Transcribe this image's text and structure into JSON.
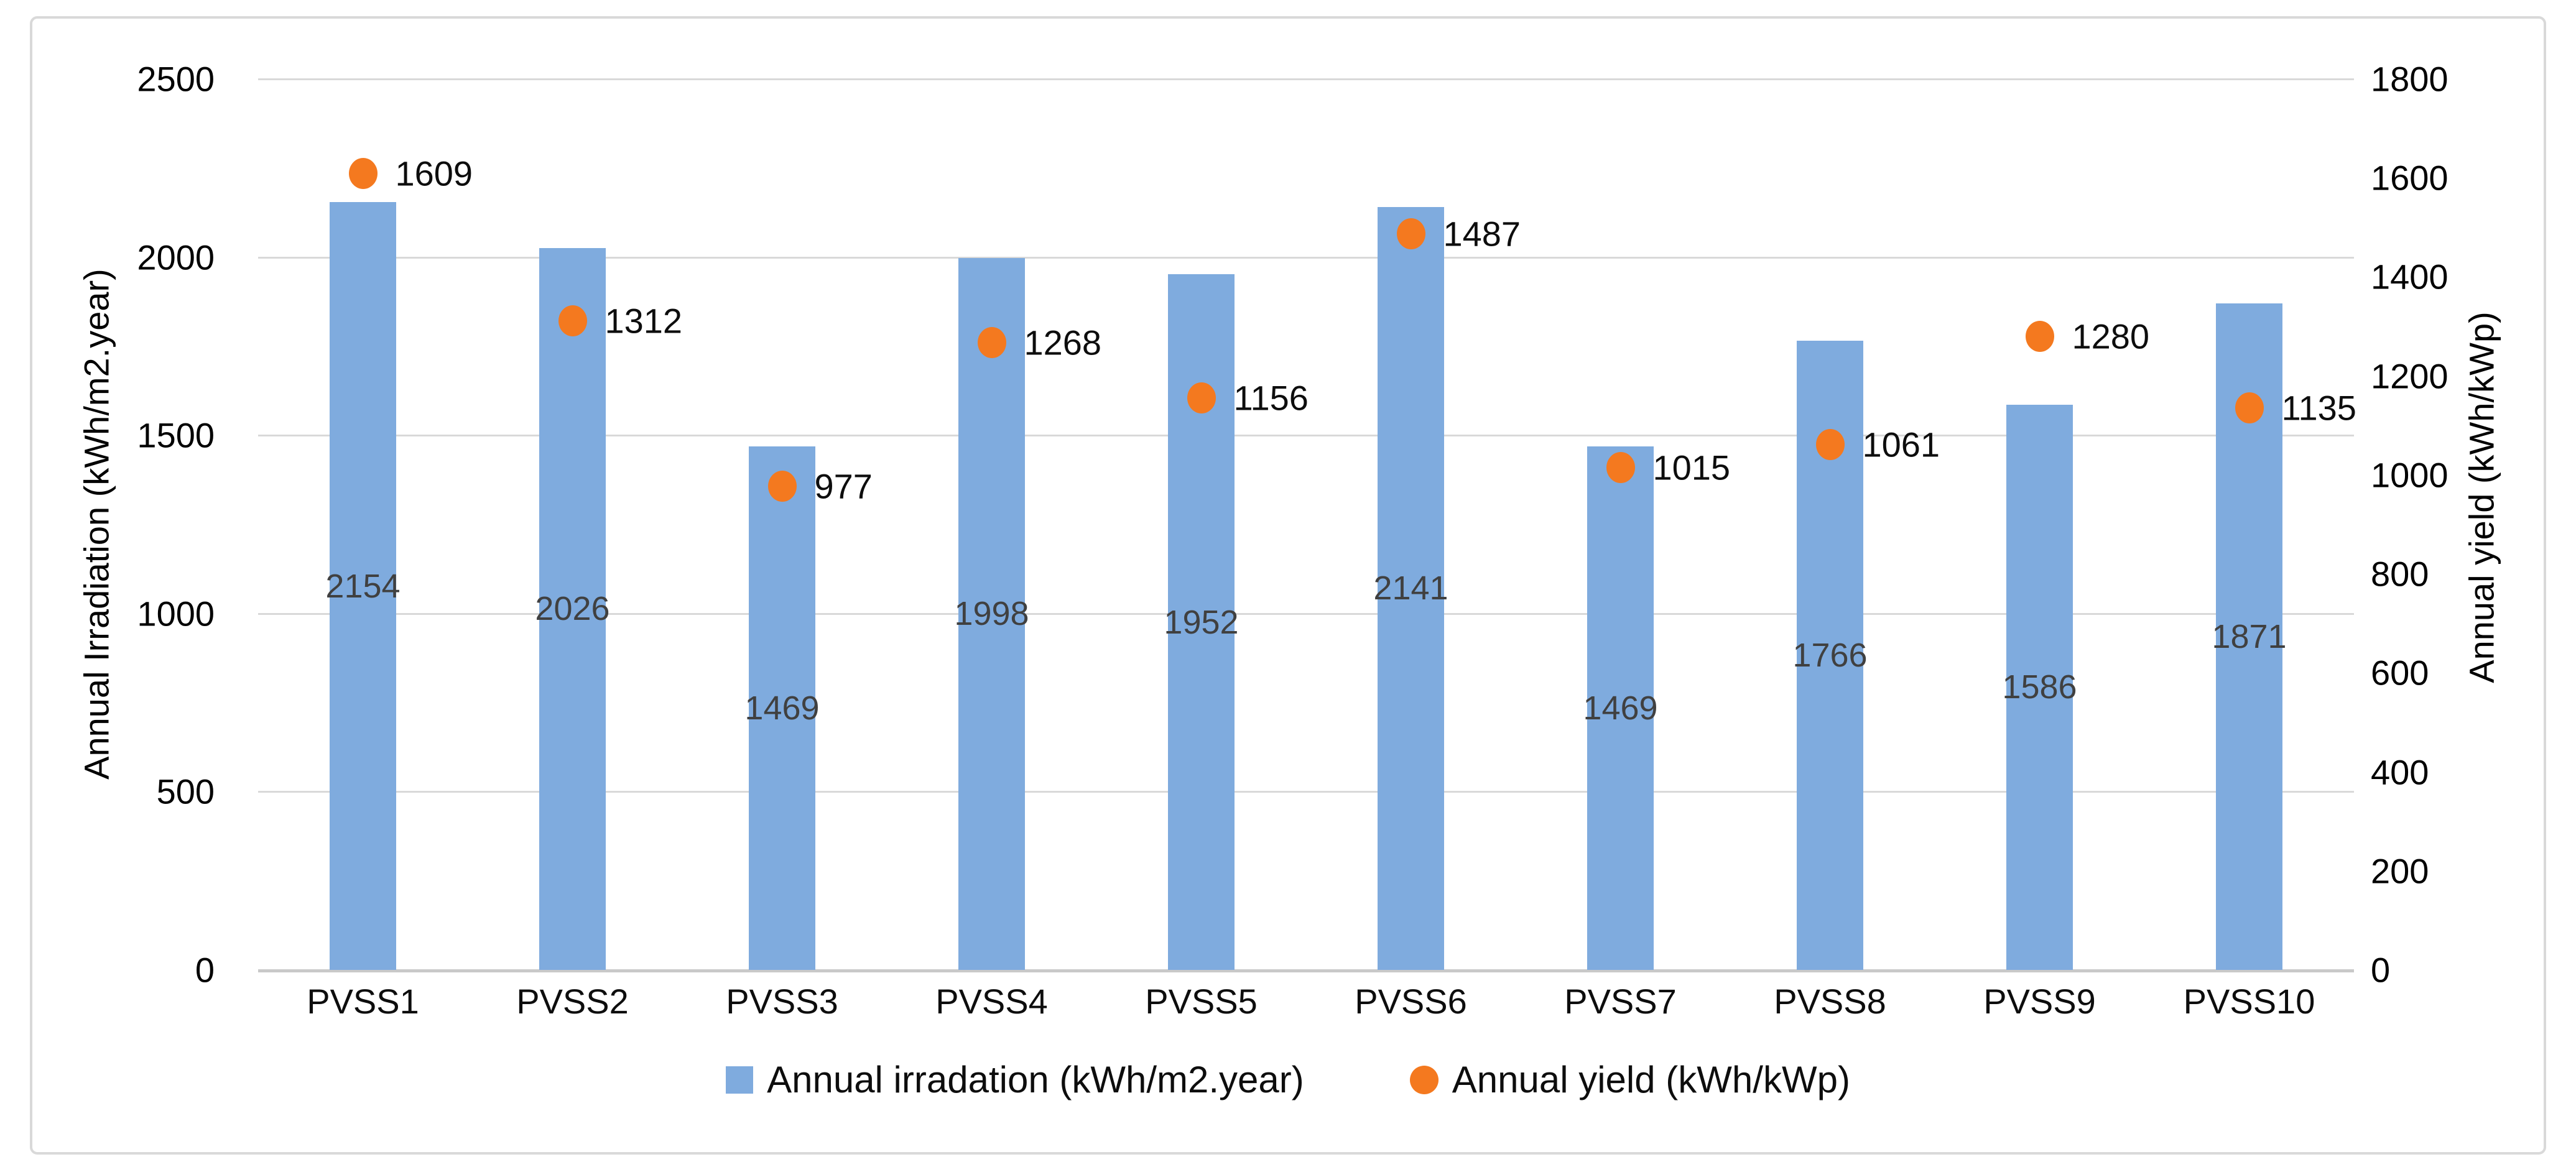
{
  "chart_data": {
    "type": "bar",
    "subtype": "combo-bar-scatter",
    "categories": [
      "PVSS1",
      "PVSS2",
      "PVSS3",
      "PVSS4",
      "PVSS5",
      "PVSS6",
      "PVSS7",
      "PVSS8",
      "PVSS9",
      "PVSS10"
    ],
    "series": [
      {
        "name": "Annual irradation (kWh/m2.year)",
        "type": "bar",
        "axis": "left",
        "color": "#7FABDE",
        "values": [
          2154,
          2026,
          1469,
          1998,
          1952,
          2141,
          1469,
          1766,
          1586,
          1871
        ]
      },
      {
        "name": "Annual yield (kWh/kWp)",
        "type": "scatter",
        "axis": "right",
        "color": "#F4791F",
        "values": [
          1609,
          1312,
          977,
          1268,
          1156,
          1487,
          1015,
          1061,
          1280,
          1135
        ]
      }
    ],
    "left_axis": {
      "label": "Annual Irradiation (kWh/m2.year)",
      "min": 0,
      "max": 2500,
      "step": 500,
      "ticks": [
        2500,
        2000,
        1500,
        1000,
        500,
        0
      ]
    },
    "right_axis": {
      "label": "Annual yield (kWh/kWp)",
      "min": 0,
      "max": 1800,
      "step": 200,
      "ticks": [
        1800,
        1600,
        1400,
        1200,
        1000,
        800,
        600,
        400,
        200,
        0
      ]
    },
    "grid": "horizontal-on",
    "legend_position": "bottom",
    "data_labels": "shown"
  },
  "colors": {
    "bar_fill": "#7FABDE",
    "marker_fill": "#F4791F",
    "gridline": "#D9D9D9",
    "frame_border": "#D9D9D9",
    "bar_label_text": "#404040",
    "point_label_text": "#0d0d0d",
    "tick_text": "#000000"
  }
}
